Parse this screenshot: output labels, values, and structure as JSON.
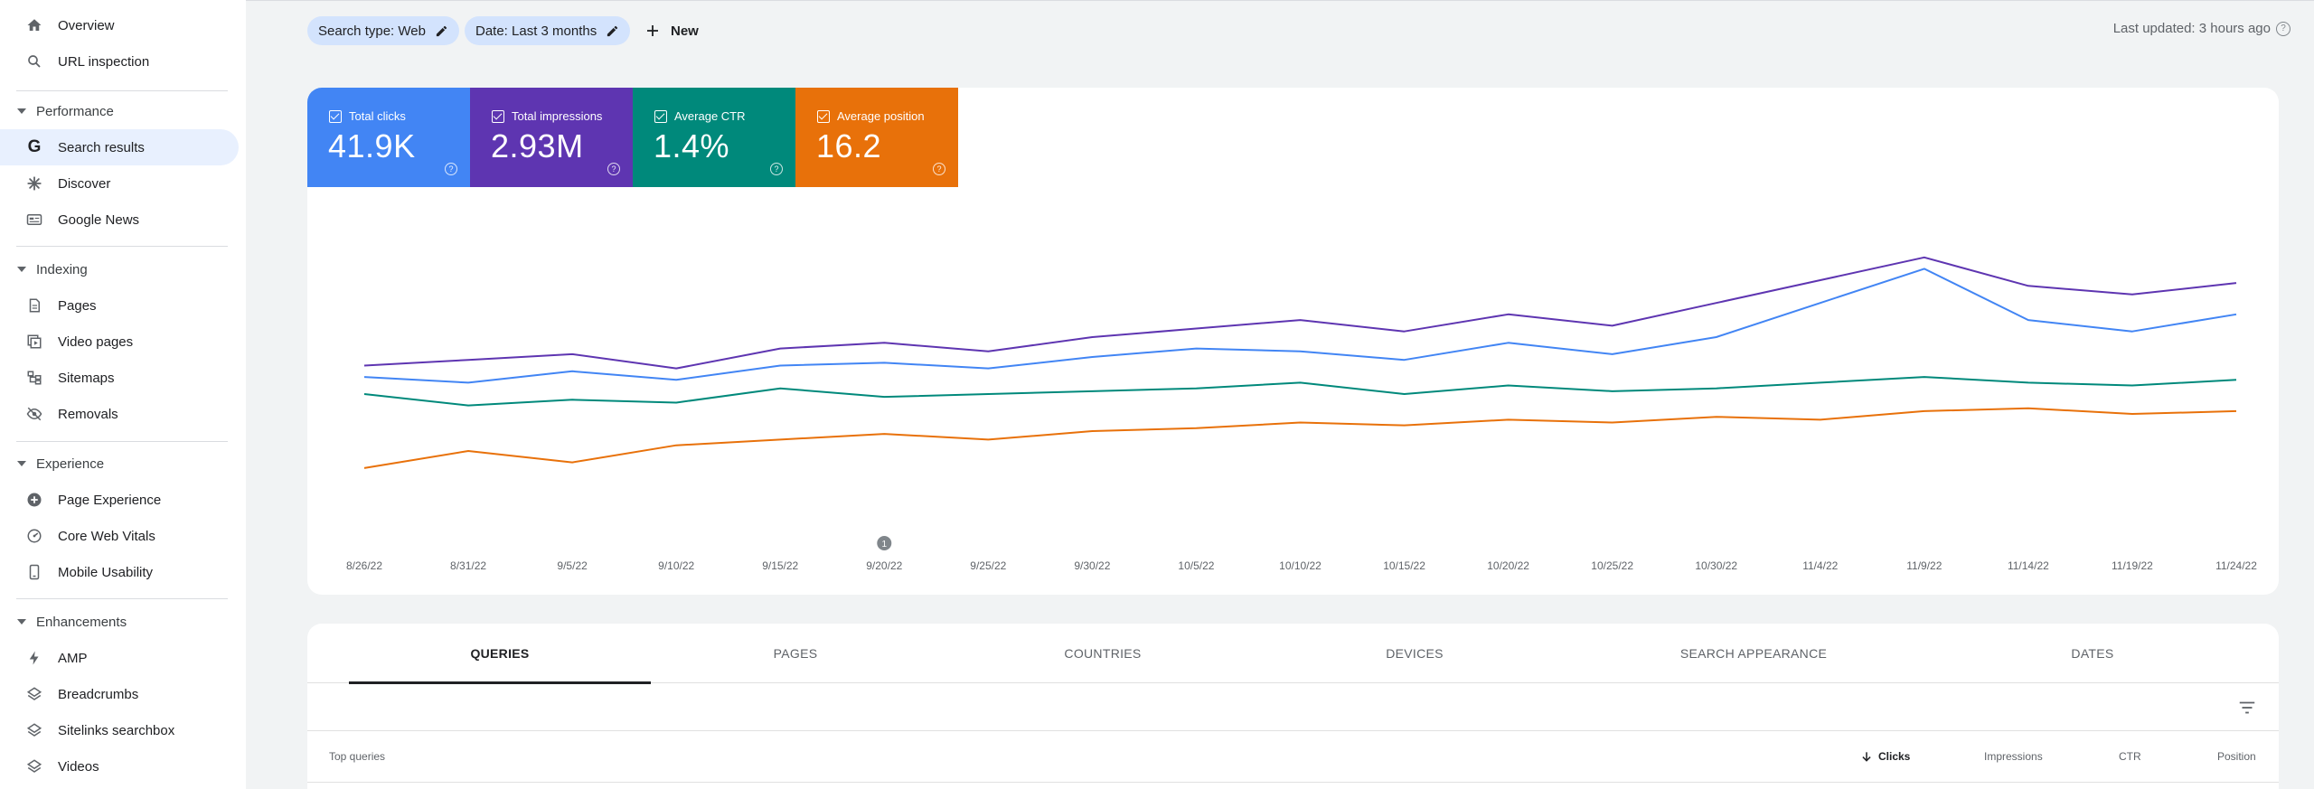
{
  "sidebar": {
    "top_items": [
      {
        "label": "Overview",
        "icon": "home-icon"
      },
      {
        "label": "URL inspection",
        "icon": "search-icon"
      }
    ],
    "sections": [
      {
        "title": "Performance",
        "items": [
          {
            "label": "Search results",
            "icon": "google-g-icon",
            "active": true
          },
          {
            "label": "Discover",
            "icon": "asterisk-icon"
          },
          {
            "label": "Google News",
            "icon": "news-icon"
          }
        ]
      },
      {
        "title": "Indexing",
        "items": [
          {
            "label": "Pages",
            "icon": "pages-icon"
          },
          {
            "label": "Video pages",
            "icon": "video-pages-icon"
          },
          {
            "label": "Sitemaps",
            "icon": "sitemap-icon"
          },
          {
            "label": "Removals",
            "icon": "eye-off-icon"
          }
        ]
      },
      {
        "title": "Experience",
        "items": [
          {
            "label": "Page Experience",
            "icon": "plus-circle-icon"
          },
          {
            "label": "Core Web Vitals",
            "icon": "gauge-icon"
          },
          {
            "label": "Mobile Usability",
            "icon": "phone-icon"
          }
        ]
      },
      {
        "title": "Enhancements",
        "items": [
          {
            "label": "AMP",
            "icon": "bolt-icon"
          },
          {
            "label": "Breadcrumbs",
            "icon": "layers-icon"
          },
          {
            "label": "Sitelinks searchbox",
            "icon": "layers-icon"
          },
          {
            "label": "Videos",
            "icon": "layers-icon"
          }
        ]
      }
    ]
  },
  "topbar": {
    "chip_search_type": "Search type: Web",
    "chip_date": "Date: Last 3 months",
    "new_label": "New",
    "last_updated": "Last updated: 3 hours ago"
  },
  "metrics": [
    {
      "label": "Total clicks",
      "value": "41.9K",
      "color": "#4285f4"
    },
    {
      "label": "Total impressions",
      "value": "2.93M",
      "color": "#5e35b1"
    },
    {
      "label": "Average CTR",
      "value": "1.4%",
      "color": "#00897b"
    },
    {
      "label": "Average position",
      "value": "16.2",
      "color": "#e8710a"
    }
  ],
  "chart_data": {
    "type": "line",
    "x": [
      "8/26/22",
      "8/31/22",
      "9/5/22",
      "9/10/22",
      "9/15/22",
      "9/20/22",
      "9/25/22",
      "9/30/22",
      "10/5/22",
      "10/10/22",
      "10/15/22",
      "10/20/22",
      "10/25/22",
      "10/30/22",
      "11/4/22",
      "11/9/22",
      "11/14/22",
      "11/19/22",
      "11/24/22"
    ],
    "annotation_label": "1",
    "series": [
      {
        "name": "Total impressions",
        "color": "#5e35b1",
        "values": [
          0.5,
          0.52,
          0.54,
          0.49,
          0.56,
          0.58,
          0.55,
          0.6,
          0.63,
          0.66,
          0.62,
          0.68,
          0.64,
          0.72,
          0.8,
          0.88,
          0.78,
          0.75,
          0.79
        ]
      },
      {
        "name": "Total clicks",
        "color": "#4285f4",
        "values": [
          0.46,
          0.44,
          0.48,
          0.45,
          0.5,
          0.51,
          0.49,
          0.53,
          0.56,
          0.55,
          0.52,
          0.58,
          0.54,
          0.6,
          0.72,
          0.84,
          0.66,
          0.62,
          0.68
        ]
      },
      {
        "name": "Average CTR",
        "color": "#00897b",
        "values": [
          0.4,
          0.36,
          0.38,
          0.37,
          0.42,
          0.39,
          0.4,
          0.41,
          0.42,
          0.44,
          0.4,
          0.43,
          0.41,
          0.42,
          0.44,
          0.46,
          0.44,
          0.43,
          0.45
        ]
      },
      {
        "name": "Average position",
        "color": "#e8710a",
        "values": [
          0.14,
          0.2,
          0.16,
          0.22,
          0.24,
          0.26,
          0.24,
          0.27,
          0.28,
          0.3,
          0.29,
          0.31,
          0.3,
          0.32,
          0.31,
          0.34,
          0.35,
          0.33,
          0.34
        ]
      }
    ]
  },
  "tabs": [
    "QUERIES",
    "PAGES",
    "COUNTRIES",
    "DEVICES",
    "SEARCH APPEARANCE",
    "DATES"
  ],
  "table": {
    "header_left": "Top queries",
    "columns": [
      "Clicks",
      "Impressions",
      "CTR",
      "Position"
    ]
  }
}
